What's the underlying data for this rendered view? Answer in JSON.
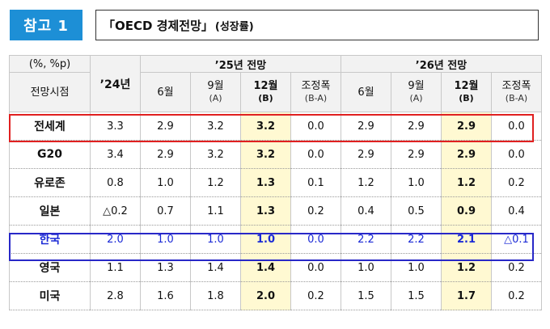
{
  "badge": "참고 1",
  "title": {
    "main": "「OECD 경제전망」",
    "sub": "(성장률)"
  },
  "table": {
    "unit_label": "(%, %p)",
    "stub_label": "전망시점",
    "col_2024": "’24년",
    "group_2025": "’25년 전망",
    "group_2026": "’26년 전망",
    "sub_headers": {
      "jun": "6월",
      "sep": "9월",
      "sep_tag": "(A)",
      "dec": "12월",
      "dec_tag": "(B)",
      "adj": "조정폭",
      "adj_tag": "(B-A)"
    },
    "rows": [
      {
        "name": "전세계",
        "v24": "3.3",
        "a6": "2.9",
        "a9": "3.2",
        "a12": "3.2",
        "aadj": "0.0",
        "b6": "2.9",
        "b9": "2.9",
        "b12": "2.9",
        "badj": "0.0"
      },
      {
        "name": "G20",
        "v24": "3.4",
        "a6": "2.9",
        "a9": "3.2",
        "a12": "3.2",
        "aadj": "0.0",
        "b6": "2.9",
        "b9": "2.9",
        "b12": "2.9",
        "badj": "0.0"
      },
      {
        "name": "유로존",
        "v24": "0.8",
        "a6": "1.0",
        "a9": "1.2",
        "a12": "1.3",
        "aadj": "0.1",
        "b6": "1.2",
        "b9": "1.0",
        "b12": "1.2",
        "badj": "0.2"
      },
      {
        "name": "일본",
        "v24": "△0.2",
        "a6": "0.7",
        "a9": "1.1",
        "a12": "1.3",
        "aadj": "0.2",
        "b6": "0.4",
        "b9": "0.5",
        "b12": "0.9",
        "badj": "0.4"
      },
      {
        "name": "한국",
        "v24": "2.0",
        "a6": "1.0",
        "a9": "1.0",
        "a12": "1.0",
        "aadj": "0.0",
        "b6": "2.2",
        "b9": "2.2",
        "b12": "2.1",
        "badj": "△0.1"
      },
      {
        "name": "영국",
        "v24": "1.1",
        "a6": "1.3",
        "a9": "1.4",
        "a12": "1.4",
        "aadj": "0.0",
        "b6": "1.0",
        "b9": "1.0",
        "b12": "1.2",
        "badj": "0.2"
      },
      {
        "name": "미국",
        "v24": "2.8",
        "a6": "1.6",
        "a9": "1.8",
        "a12": "2.0",
        "aadj": "0.2",
        "b6": "1.5",
        "b9": "1.5",
        "b12": "1.7",
        "badj": "0.2"
      }
    ]
  },
  "colors": {
    "badge_bg": "#1d8fd6",
    "highlight_col": "#fff9d2",
    "world_frame": "#e02020",
    "korea_frame": "#2828c8",
    "korea_text": "#1b2ad6"
  }
}
